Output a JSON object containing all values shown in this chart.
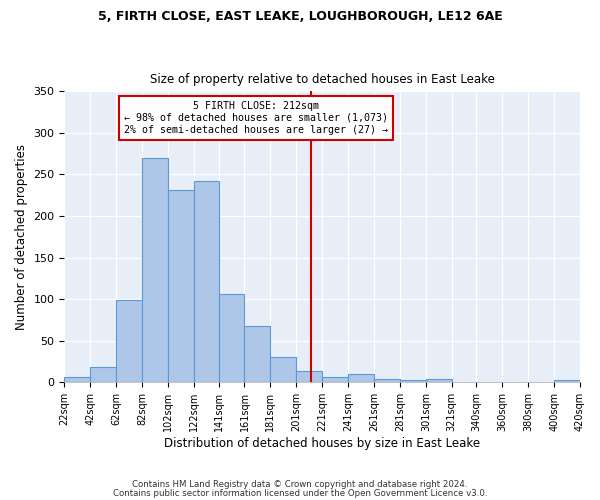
{
  "title1": "5, FIRTH CLOSE, EAST LEAKE, LOUGHBOROUGH, LE12 6AE",
  "title2": "Size of property relative to detached houses in East Leake",
  "xlabel": "Distribution of detached houses by size in East Leake",
  "ylabel": "Number of detached properties",
  "footer1": "Contains HM Land Registry data © Crown copyright and database right 2024.",
  "footer2": "Contains public sector information licensed under the Open Government Licence v3.0.",
  "annotation_line1": "5 FIRTH CLOSE: 212sqm",
  "annotation_line2": "← 98% of detached houses are smaller (1,073)",
  "annotation_line3": "2% of semi-detached houses are larger (27) →",
  "property_size": 212,
  "bar_edges": [
    22,
    42,
    62,
    82,
    102,
    122,
    141,
    161,
    181,
    201,
    221,
    241,
    261,
    281,
    301,
    321,
    340,
    360,
    380,
    400,
    420
  ],
  "bar_heights": [
    7,
    19,
    99,
    270,
    231,
    242,
    106,
    68,
    30,
    14,
    6,
    10,
    4,
    3,
    4,
    0,
    0,
    0,
    0,
    3
  ],
  "bar_color": "#aec6e8",
  "bar_edge_color": "#5b9bd5",
  "vline_color": "#cc0000",
  "vline_x": 212,
  "box_color": "#cc0000",
  "background_color": "#e8eef8",
  "ylim": [
    0,
    350
  ],
  "xlim": [
    22,
    420
  ]
}
